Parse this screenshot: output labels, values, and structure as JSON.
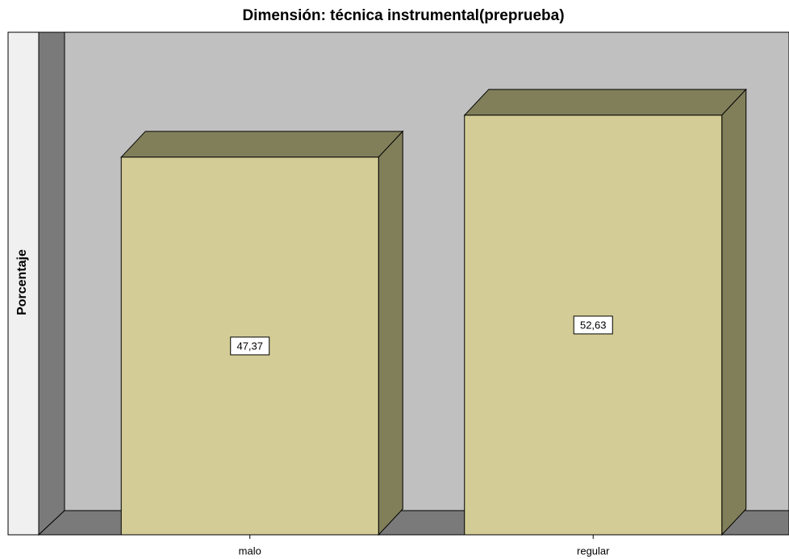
{
  "chart_data": {
    "type": "bar3d",
    "title": "Dimensión: técnica instrumental(preprueba)",
    "y_label": "Porcentaje",
    "categories": [
      "malo",
      "regular"
    ],
    "values": [
      47.37,
      52.63
    ],
    "value_labels": [
      "47,37",
      "52,63"
    ],
    "color": "#d3cc96",
    "ylim": [
      0,
      60
    ]
  }
}
